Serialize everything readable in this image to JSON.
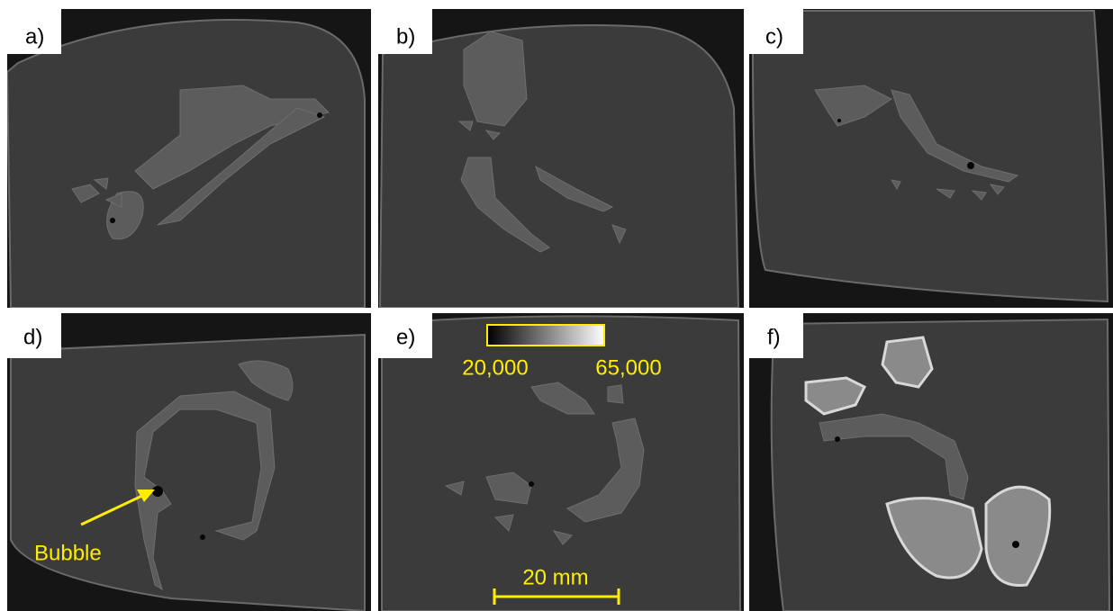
{
  "panels": [
    {
      "label": "a)"
    },
    {
      "label": "b)"
    },
    {
      "label": "c)"
    },
    {
      "label": "d)"
    },
    {
      "label": "e)"
    },
    {
      "label": "f)"
    }
  ],
  "colorbar": {
    "min_label": "20,000",
    "max_label": "65,000"
  },
  "scale_bar": {
    "label": "20 mm"
  },
  "annotation": {
    "label": "Bubble"
  }
}
